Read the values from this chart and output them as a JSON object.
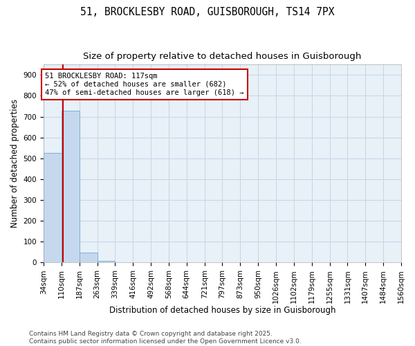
{
  "title": "51, BROCKLESBY ROAD, GUISBOROUGH, TS14 7PX",
  "subtitle": "Size of property relative to detached houses in Guisborough",
  "xlabel": "Distribution of detached houses by size in Guisborough",
  "ylabel": "Number of detached properties",
  "bin_edges": [
    34,
    110,
    187,
    263,
    339,
    416,
    492,
    568,
    644,
    721,
    797,
    873,
    950,
    1026,
    1102,
    1179,
    1255,
    1331,
    1407,
    1484,
    1560
  ],
  "bar_heights": [
    527,
    728,
    47,
    9,
    0,
    0,
    0,
    0,
    0,
    0,
    0,
    0,
    0,
    0,
    0,
    0,
    0,
    0,
    0,
    0
  ],
  "bar_color": "#c5d8ee",
  "bar_edgecolor": "#7aafd4",
  "property_size": 117,
  "vline_color": "#cc0000",
  "annotation_text": "51 BROCKLESBY ROAD: 117sqm\n← 52% of detached houses are smaller (682)\n47% of semi-detached houses are larger (618) →",
  "annotation_box_facecolor": "#ffffff",
  "annotation_box_edgecolor": "#cc0000",
  "ylim": [
    0,
    950
  ],
  "yticks": [
    0,
    100,
    200,
    300,
    400,
    500,
    600,
    700,
    800,
    900
  ],
  "grid_color": "#c5d5e5",
  "background_color": "#e8f0f8",
  "footer_text": "Contains HM Land Registry data © Crown copyright and database right 2025.\nContains public sector information licensed under the Open Government Licence v3.0.",
  "title_fontsize": 10.5,
  "subtitle_fontsize": 9.5,
  "xlabel_fontsize": 8.5,
  "ylabel_fontsize": 8.5,
  "tick_fontsize": 7.5,
  "annotation_fontsize": 7.5,
  "footer_fontsize": 6.5
}
